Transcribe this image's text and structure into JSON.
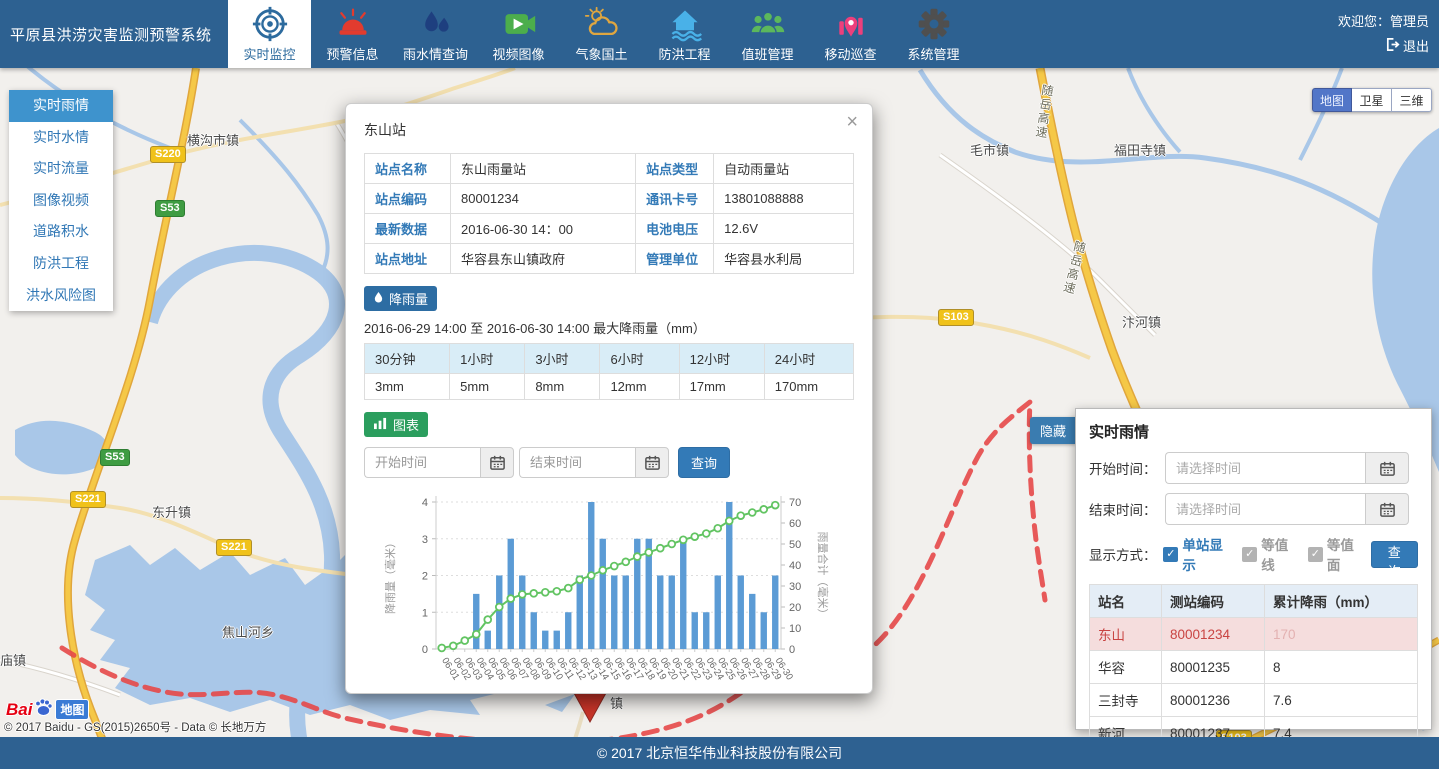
{
  "header": {
    "title": "平原县洪涝灾害监测预警系统",
    "nav": [
      {
        "label": "实时监控"
      },
      {
        "label": "预警信息"
      },
      {
        "label": "雨水情查询"
      },
      {
        "label": "视频图像"
      },
      {
        "label": "气象国土"
      },
      {
        "label": "防洪工程"
      },
      {
        "label": "值班管理"
      },
      {
        "label": "移动巡查"
      },
      {
        "label": "系统管理"
      }
    ],
    "welcome": "欢迎您：管理员",
    "logout": "退出"
  },
  "sidebar": {
    "items": [
      {
        "label": "实时雨情"
      },
      {
        "label": "实时水情"
      },
      {
        "label": "实时流量"
      },
      {
        "label": "图像视频"
      },
      {
        "label": "道路积水"
      },
      {
        "label": "防洪工程"
      },
      {
        "label": "洪水风险图"
      }
    ]
  },
  "map": {
    "controls": [
      {
        "label": "地图"
      },
      {
        "label": "卫星"
      },
      {
        "label": "三维"
      }
    ],
    "towns": [
      "横沟市镇",
      "毛市镇",
      "福田寺镇",
      "汴河镇",
      "东升镇",
      "焦山河乡",
      "庙镇",
      "镇"
    ],
    "badges": [
      "S220",
      "S53",
      "S221",
      "S53",
      "S221",
      "S103",
      "S103"
    ],
    "highway_label": "随岳高速",
    "logo_bai": "Bai",
    "logo_tag": "地图",
    "attribution": "© 2017 Baidu - GS(2015)2650号 - Data © 长地万方"
  },
  "modal": {
    "title": "东山站",
    "close": "×",
    "info_rows": [
      [
        "站点名称",
        "东山雨量站",
        "站点类型",
        "自动雨量站"
      ],
      [
        "站点编码",
        "80001234",
        "通讯卡号",
        "13801088888"
      ],
      [
        "最新数据",
        "2016-06-30 14：00",
        "电池电压",
        "12.6V"
      ],
      [
        "站点地址",
        "华容县东山镇政府",
        "管理单位",
        "华容县水利局"
      ]
    ],
    "rain_badge": "降雨量",
    "rain_caption": "2016-06-29 14:00 至 2016-06-30 14:00 最大降雨量（mm）",
    "rain_headers": [
      "30分钟",
      "1小时",
      "3小时",
      "6小时",
      "12小时",
      "24小时"
    ],
    "rain_values": [
      "3mm",
      "5mm",
      "8mm",
      "12mm",
      "17mm",
      "170mm"
    ],
    "chart_badge": "图表",
    "start_placeholder": "开始时间",
    "end_placeholder": "结束时间",
    "query_label": "查询"
  },
  "chart_data": {
    "type": "bar",
    "categories": [
      "06-01",
      "06-02",
      "06-03",
      "06-04",
      "06-05",
      "06-06",
      "06-07",
      "06-08",
      "06-09",
      "06-10",
      "06-11",
      "06-12",
      "06-13",
      "06-14",
      "06-15",
      "06-16",
      "06-17",
      "06-18",
      "06-19",
      "06-20",
      "06-21",
      "06-22",
      "06-23",
      "06-24",
      "06-25",
      "06-26",
      "06-27",
      "06-28",
      "06-29",
      "06-30"
    ],
    "series": [
      {
        "name": "降雨量",
        "type": "bar",
        "axis": "left",
        "color": "#5b9bd5",
        "values": [
          0,
          0,
          0,
          1.5,
          0.5,
          2,
          3,
          2,
          1,
          0.5,
          0.5,
          1,
          2,
          4,
          3,
          2,
          2,
          3,
          3,
          2,
          2,
          3,
          1,
          1,
          2,
          4,
          2,
          1.5,
          1,
          2
        ]
      },
      {
        "name": "雨量合计",
        "type": "line",
        "axis": "right",
        "color": "#62c462",
        "values": [
          0.5,
          1.5,
          4,
          7,
          14,
          20,
          24,
          26,
          26.5,
          27,
          27.5,
          29,
          33,
          35,
          37.5,
          39.5,
          41.5,
          44,
          46,
          48,
          50,
          52,
          53.5,
          55,
          57.5,
          61,
          63.5,
          65,
          66.5,
          68.5
        ]
      }
    ],
    "left_axis": {
      "label": "降雨量（毫米）",
      "min": 0,
      "max": 4,
      "ticks": [
        0,
        1,
        2,
        3,
        4
      ]
    },
    "right_axis": {
      "label": "雨量合计（毫米）",
      "min": 0,
      "max": 70,
      "ticks": [
        0,
        10,
        20,
        30,
        40,
        50,
        60,
        70
      ]
    },
    "grid": "horizontal-dotted",
    "legend": "none"
  },
  "right_panel": {
    "hide_tab": "隐藏",
    "title": "实时雨情",
    "start_label": "开始时间：",
    "end_label": "结束时间：",
    "time_placeholder": "请选择时间",
    "mode_label": "显示方式：",
    "checkboxes": [
      {
        "label": "单站显示",
        "checked": true
      },
      {
        "label": "等值线",
        "checked": true
      },
      {
        "label": "等值面",
        "checked": true
      }
    ],
    "query_label": "查询",
    "table": {
      "headers": [
        "站名",
        "测站编码",
        "累计降雨（mm）"
      ],
      "rows": [
        [
          "东山",
          "80001234",
          "170"
        ],
        [
          "华容",
          "80001235",
          "8"
        ],
        [
          "三封寺",
          "80001236",
          "7.6"
        ],
        [
          "新河",
          "80001237",
          "7.4"
        ]
      ]
    }
  },
  "footer": {
    "copyright": "© 2017 北京恒华伟业科技股份有限公司"
  }
}
